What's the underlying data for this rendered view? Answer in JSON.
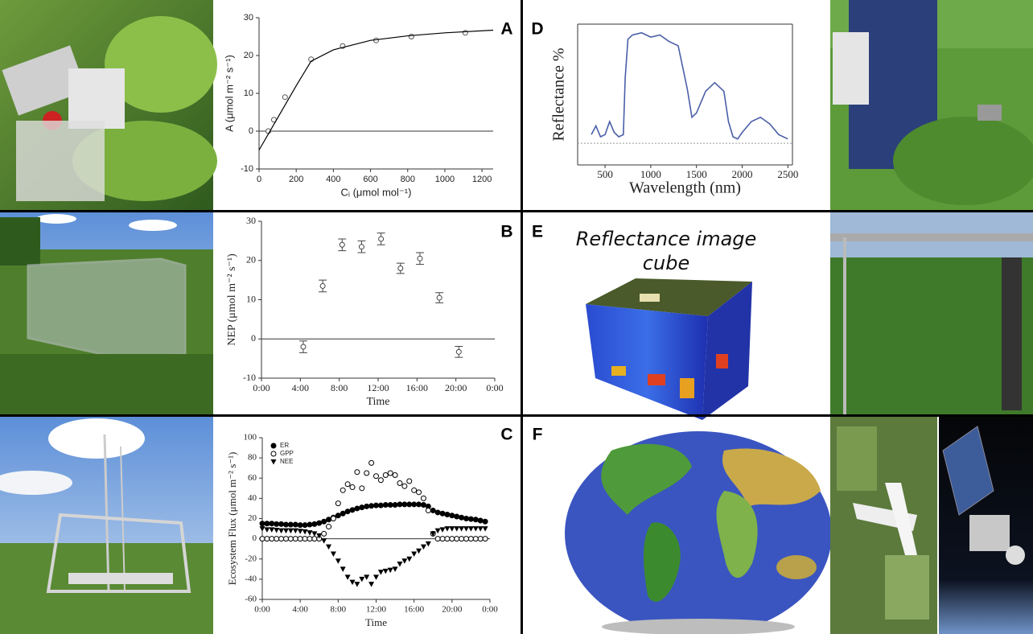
{
  "panel_labels": [
    "A",
    "B",
    "C",
    "D",
    "E",
    "F"
  ],
  "panel_e": {
    "caption": [
      "Reflectance image",
      "cube"
    ]
  },
  "chart_data": [
    {
      "type": "scatter",
      "xlabel": "Cᵢ (μmol mol⁻¹)",
      "ylabel": "A (μmol m⁻² s⁻¹)",
      "xlim": [
        0,
        1260
      ],
      "ylim": [
        -10,
        30
      ],
      "xticks": [
        0,
        200,
        400,
        600,
        800,
        1000,
        1200
      ],
      "yticks": [
        -10,
        0,
        10,
        20,
        30
      ],
      "zero_line": true,
      "series": [
        {
          "marker": "open-circle",
          "color": "#555555",
          "x": [
            50,
            80,
            140,
            280,
            450,
            630,
            820,
            1110
          ],
          "values": [
            0,
            3,
            9,
            19,
            22.5,
            24,
            25,
            26
          ]
        },
        {
          "line": true,
          "color": "#000000",
          "x": [
            0,
            100,
            200,
            280,
            400,
            600,
            800,
            1000,
            1260
          ],
          "values": [
            -5,
            3.5,
            12,
            18.5,
            21.5,
            24,
            25.2,
            26,
            26.7
          ]
        }
      ]
    },
    {
      "type": "scatter",
      "xlabel": "Time",
      "ylabel": "NEP (μmol m⁻² s⁻¹)",
      "xlim": [
        0,
        24
      ],
      "ylim": [
        -10,
        30
      ],
      "xticks": [
        {
          "value": 0,
          "label": "0:00"
        },
        {
          "value": 4,
          "label": "4:00"
        },
        {
          "value": 8,
          "label": "8:00"
        },
        {
          "value": 12,
          "label": "12:00"
        },
        {
          "value": 16,
          "label": "16:00"
        },
        {
          "value": 20,
          "label": "20:00"
        },
        {
          "value": 24,
          "label": "0:00"
        }
      ],
      "yticks": [
        -10,
        0,
        10,
        20,
        30
      ],
      "zero_line": true,
      "series": [
        {
          "marker": "open-circle",
          "color": "#444444",
          "x": [
            4.3,
            6.3,
            8.3,
            10.3,
            12.3,
            14.3,
            16.3,
            18.3,
            20.3
          ],
          "values": [
            -2,
            13.5,
            24,
            23.5,
            25.5,
            18,
            20.5,
            10.5,
            -3.3
          ],
          "errors": [
            1.5,
            1.5,
            1.5,
            1.5,
            1.5,
            1.3,
            1.5,
            1.3,
            1.4
          ]
        }
      ]
    },
    {
      "type": "scatter",
      "xlabel": "Time",
      "ylabel": "Ecosystem Flux (μmol m⁻² s⁻¹)",
      "xlim": [
        0,
        24
      ],
      "ylim": [
        -60,
        100
      ],
      "xticks": [
        {
          "value": 0,
          "label": "0:00"
        },
        {
          "value": 4,
          "label": "4:00"
        },
        {
          "value": 8,
          "label": "8:00"
        },
        {
          "value": 12,
          "label": "12:00"
        },
        {
          "value": 16,
          "label": "16:00"
        },
        {
          "value": 20,
          "label": "20:00"
        },
        {
          "value": 24,
          "label": "0:00"
        }
      ],
      "yticks": [
        -60,
        -40,
        -20,
        0,
        20,
        40,
        60,
        80,
        100
      ],
      "zero_line": true,
      "x": [
        0,
        0.5,
        1,
        1.5,
        2,
        2.5,
        3,
        3.5,
        4,
        4.5,
        5,
        5.5,
        6,
        6.5,
        7,
        7.5,
        8,
        8.5,
        9,
        9.5,
        10,
        10.5,
        11,
        11.5,
        12,
        12.5,
        13,
        13.5,
        14,
        14.5,
        15,
        15.5,
        16,
        16.5,
        17,
        17.5,
        18,
        18.5,
        19,
        19.5,
        20,
        20.5,
        21,
        21.5,
        22,
        22.5,
        23,
        23.5
      ],
      "series": [
        {
          "name": "ER",
          "marker": "filled-circle",
          "color": "#000000",
          "values": [
            15,
            15,
            15,
            14.5,
            14.5,
            14,
            14,
            14,
            13.5,
            13.5,
            14,
            14.5,
            15.5,
            17,
            19,
            21,
            23,
            25,
            27,
            28.5,
            30,
            31,
            32,
            32.5,
            33,
            33,
            33.5,
            33.5,
            33.5,
            34,
            34,
            34,
            34,
            34,
            33.5,
            32,
            28,
            26,
            25,
            24,
            23,
            22,
            21,
            20,
            19.5,
            19,
            18,
            17
          ]
        },
        {
          "name": "GPP",
          "marker": "open-circle",
          "color": "#000000",
          "values": [
            0,
            0,
            0,
            0,
            0,
            0,
            0,
            0,
            0,
            0,
            0,
            0,
            0,
            5,
            12,
            20,
            35,
            48,
            54,
            51,
            66,
            50,
            65,
            75,
            62,
            58,
            63,
            65,
            63,
            55,
            52,
            57,
            48,
            46,
            40,
            28,
            5,
            0,
            0,
            0,
            0,
            0,
            0,
            0,
            0,
            0,
            0,
            0
          ]
        },
        {
          "name": "NEE",
          "marker": "filled-triangle-down",
          "color": "#000000",
          "values": [
            10,
            9,
            9,
            8.5,
            8,
            8,
            8,
            8,
            7.5,
            7,
            6,
            5,
            3,
            -2,
            -8,
            -15,
            -22,
            -30,
            -38,
            -43,
            -45,
            -40,
            -38,
            -45,
            -38,
            -33,
            -32,
            -31,
            -30,
            -25,
            -22,
            -20,
            -15,
            -12,
            -8,
            -5,
            5,
            8,
            9,
            10,
            10,
            10,
            10,
            10,
            10,
            10,
            10,
            10
          ]
        }
      ]
    },
    {
      "type": "line",
      "xlabel": "Wavelength (nm)",
      "ylabel": "Reflectance %",
      "xlim": [
        200,
        2550
      ],
      "ylim": [
        -10,
        55
      ],
      "xticks": [
        500,
        1000,
        1500,
        2000,
        2500
      ],
      "zero_line": true,
      "x": [
        350,
        400,
        450,
        500,
        550,
        600,
        650,
        700,
        720,
        750,
        800,
        900,
        1000,
        1100,
        1200,
        1300,
        1400,
        1450,
        1500,
        1600,
        1700,
        1800,
        1850,
        1900,
        1950,
        2000,
        2100,
        2200,
        2300,
        2400,
        2500
      ],
      "series": [
        {
          "color": "#4a5fa8",
          "values": [
            4,
            8,
            3,
            4,
            10,
            5,
            3,
            4,
            30,
            48,
            50,
            51,
            49,
            50,
            47,
            45,
            25,
            12,
            14,
            24,
            28,
            24,
            10,
            3,
            2,
            5,
            10,
            12,
            9,
            4,
            2
          ]
        }
      ]
    }
  ]
}
